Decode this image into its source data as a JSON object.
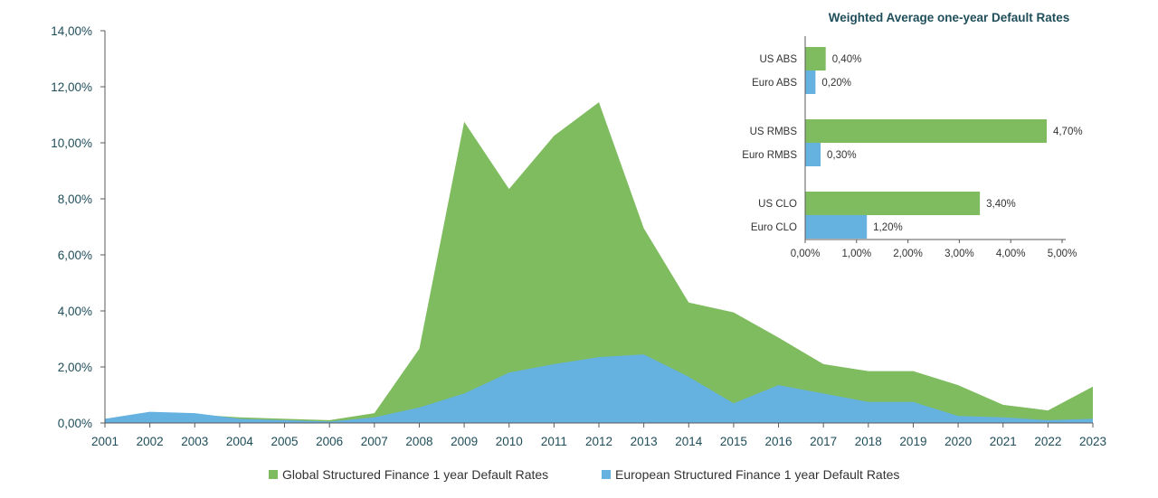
{
  "chart_data": [
    {
      "type": "area",
      "categories": [
        "2001",
        "2002",
        "2003",
        "2004",
        "2005",
        "2006",
        "2007",
        "2008",
        "2009",
        "2010",
        "2011",
        "2012",
        "2013",
        "2014",
        "2015",
        "2016",
        "2017",
        "2018",
        "2019",
        "2020",
        "2021",
        "2022",
        "2023"
      ],
      "series": [
        {
          "name": "Global Structured Finance 1  year Default Rates",
          "color": "#7fbc5f",
          "values": [
            0.1,
            0.35,
            0.3,
            0.2,
            0.15,
            0.1,
            0.35,
            2.65,
            10.75,
            8.35,
            10.25,
            11.45,
            6.95,
            4.3,
            3.95,
            3.05,
            2.1,
            1.85,
            1.85,
            1.35,
            0.65,
            0.45,
            1.3
          ]
        },
        {
          "name": "European Structured Finance 1 year Default Rates",
          "color": "#65b1e0",
          "values": [
            0.15,
            0.4,
            0.35,
            0.15,
            0.1,
            0.05,
            0.2,
            0.55,
            1.05,
            1.8,
            2.1,
            2.35,
            2.45,
            1.65,
            0.7,
            1.35,
            1.05,
            0.75,
            0.75,
            0.25,
            0.2,
            0.1,
            0.15
          ]
        }
      ],
      "ylim": [
        0,
        14
      ],
      "yticks": [
        "0,00%",
        "2,00%",
        "4,00%",
        "6,00%",
        "8,00%",
        "10,00%",
        "12,00%",
        "14,00%"
      ],
      "legend_position": "bottom"
    },
    {
      "type": "bar",
      "orientation": "horizontal",
      "title": "Weighted Average one-year Default Rates",
      "categories": [
        "US ABS",
        "Euro ABS",
        "US RMBS",
        "Euro RMBS",
        "US CLO",
        "Euro CLO"
      ],
      "values": [
        0.4,
        0.2,
        4.7,
        0.3,
        3.4,
        1.2
      ],
      "value_labels": [
        "0,40%",
        "0,20%",
        "4,70%",
        "0,30%",
        "3,40%",
        "1,20%"
      ],
      "colors": [
        "#7fbc5f",
        "#65b1e0",
        "#7fbc5f",
        "#65b1e0",
        "#7fbc5f",
        "#65b1e0"
      ],
      "xlim": [
        0,
        5
      ],
      "xticks": [
        "0,00%",
        "1,00%",
        "2,00%",
        "3,00%",
        "4,00%",
        "5,00%"
      ]
    }
  ]
}
